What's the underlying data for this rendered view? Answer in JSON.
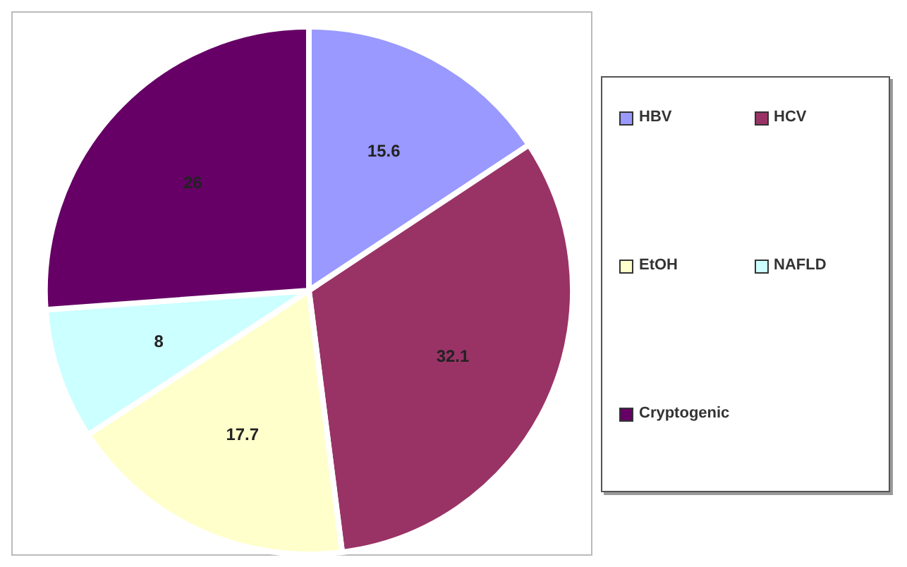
{
  "chart_data": {
    "type": "pie",
    "categories": [
      "HBV",
      "HCV",
      "EtOH",
      "NAFLD",
      "Cryptogenic"
    ],
    "values": [
      15.6,
      32.1,
      17.7,
      8,
      26
    ],
    "colors": [
      "#9999ff",
      "#993366",
      "#ffffcc",
      "#ccffff",
      "#660066"
    ],
    "data_labels": true,
    "legend": "right"
  }
}
